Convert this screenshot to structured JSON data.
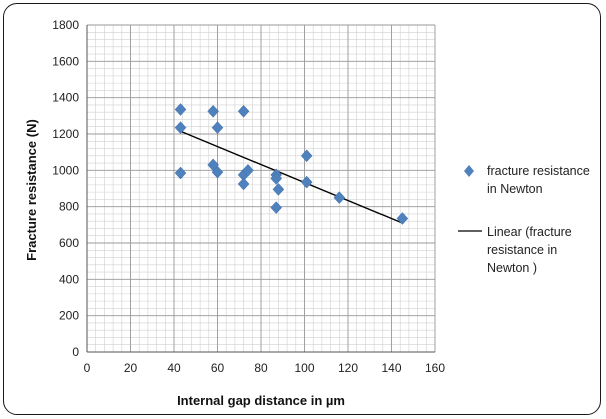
{
  "chart_data": {
    "type": "scatter",
    "xlabel": "Internal gap distance in µm",
    "ylabel": "Fracture resistance (N)",
    "xlim": [
      0,
      160
    ],
    "ylim": [
      0,
      1800
    ],
    "x_ticks": [
      "0",
      "20",
      "40",
      "60",
      "80",
      "100",
      "120",
      "140",
      "160"
    ],
    "y_ticks": [
      "0",
      "200",
      "400",
      "600",
      "800",
      "1000",
      "1200",
      "1400",
      "1600",
      "1800"
    ],
    "grid": true,
    "minor_grid": true,
    "legend_position": "right",
    "series": [
      {
        "name": "fracture resistance in Newton",
        "color": "#4f81bd",
        "marker": "diamond",
        "points": [
          {
            "x": 43,
            "y": 1335
          },
          {
            "x": 43,
            "y": 1235
          },
          {
            "x": 43,
            "y": 985
          },
          {
            "x": 58,
            "y": 1325
          },
          {
            "x": 58,
            "y": 1030
          },
          {
            "x": 60,
            "y": 1235
          },
          {
            "x": 60,
            "y": 990
          },
          {
            "x": 72,
            "y": 1325
          },
          {
            "x": 72,
            "y": 975
          },
          {
            "x": 72,
            "y": 925
          },
          {
            "x": 74,
            "y": 1000
          },
          {
            "x": 87,
            "y": 975
          },
          {
            "x": 87,
            "y": 955
          },
          {
            "x": 87,
            "y": 795
          },
          {
            "x": 88,
            "y": 895
          },
          {
            "x": 101,
            "y": 1080
          },
          {
            "x": 101,
            "y": 935
          },
          {
            "x": 116,
            "y": 850
          },
          {
            "x": 145,
            "y": 735
          }
        ]
      }
    ],
    "trendline": {
      "name": "Linear (fracture resistance in Newton )",
      "color": "#000000",
      "x": [
        43,
        145
      ],
      "y": [
        1215,
        710
      ]
    },
    "legend_labels": {
      "scatter": [
        "fracture resistance",
        "in Newton"
      ],
      "trend": [
        "Linear (fracture",
        "resistance in",
        "Newton )"
      ]
    }
  }
}
